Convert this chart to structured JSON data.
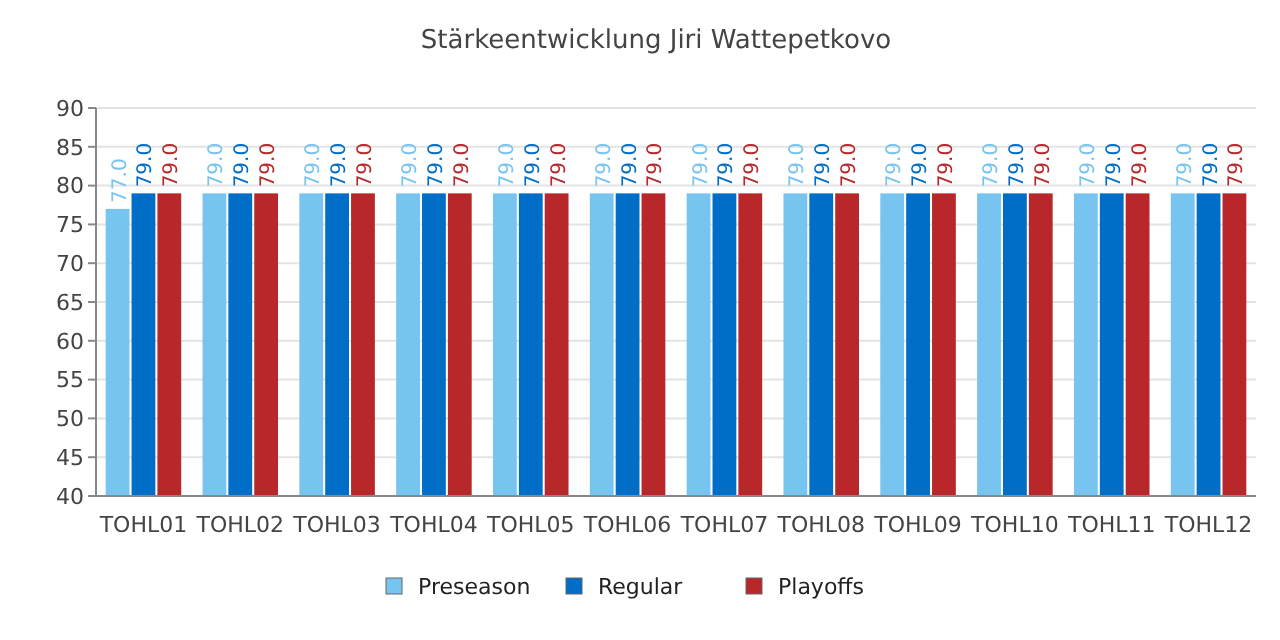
{
  "chart_data": {
    "type": "bar",
    "title": "Stärkeentwicklung Jiri Wattepetkovo",
    "categories": [
      "TOHL01",
      "TOHL02",
      "TOHL03",
      "TOHL04",
      "TOHL05",
      "TOHL06",
      "TOHL07",
      "TOHL08",
      "TOHL09",
      "TOHL10",
      "TOHL11",
      "TOHL12"
    ],
    "series": [
      {
        "name": "Preseason",
        "color": "#76c4ef",
        "values": [
          77,
          79,
          79,
          79,
          79,
          79,
          79,
          79,
          79,
          79,
          79,
          79
        ],
        "value_labels": [
          "77.0",
          "79.0",
          "79.0",
          "79.0",
          "79.0",
          "79.0",
          "79.0",
          "79.0",
          "79.0",
          "79.0",
          "79.0",
          "79.0"
        ]
      },
      {
        "name": "Regular",
        "color": "#006dc6",
        "values": [
          79,
          79,
          79,
          79,
          79,
          79,
          79,
          79,
          79,
          79,
          79,
          79
        ],
        "value_labels": [
          "79.0",
          "79.0",
          "79.0",
          "79.0",
          "79.0",
          "79.0",
          "79.0",
          "79.0",
          "79.0",
          "79.0",
          "79.0",
          "79.0"
        ]
      },
      {
        "name": "Playoffs",
        "color": "#b8282a",
        "values": [
          79,
          79,
          79,
          79,
          79,
          79,
          79,
          79,
          79,
          79,
          79,
          79
        ],
        "value_labels": [
          "79.0",
          "79.0",
          "79.0",
          "79.0",
          "79.0",
          "79.0",
          "79.0",
          "79.0",
          "79.0",
          "79.0",
          "79.0",
          "79.0"
        ]
      }
    ],
    "ylim": [
      40,
      90
    ],
    "yticks": [
      40,
      45,
      50,
      55,
      60,
      65,
      70,
      75,
      80,
      85,
      90
    ],
    "grid": "y",
    "legend": "bottom"
  }
}
